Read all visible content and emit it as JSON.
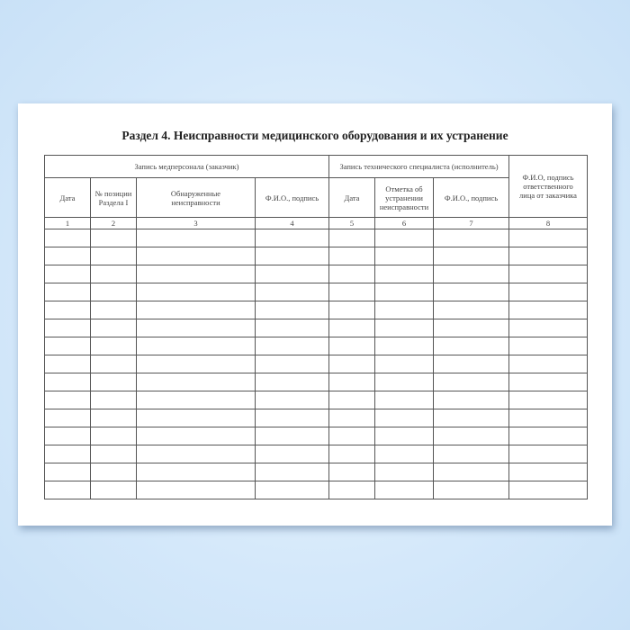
{
  "title": "Раздел 4. Неисправности медицинского оборудования и их устранение",
  "groups": {
    "customer": "Запись медперсонала (заказчик)",
    "technician": "Запись технического специалиста (исполнитель)",
    "responsible": "Ф.И.О, подпись ответственного лица от заказчика"
  },
  "columns": [
    "Дата",
    "№ позиции Раздела I",
    "Обнаруженные неисправности",
    "Ф.И.О., подпись",
    "Дата",
    "Отметка об устранении неисправности",
    "Ф.И.О., подпись"
  ],
  "column_numbers": [
    "1",
    "2",
    "3",
    "4",
    "5",
    "6",
    "7",
    "8"
  ],
  "colors": {
    "background": "#d4e8fa",
    "page": "#ffffff",
    "lines": "#555555"
  }
}
